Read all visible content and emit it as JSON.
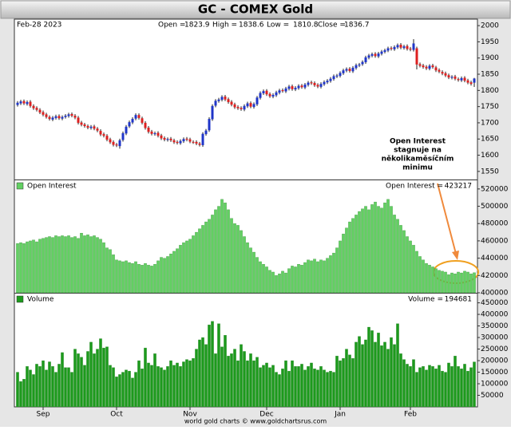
{
  "title": "GC - COMEX Gold",
  "footer": "world gold charts © www.goldchartsrus.com",
  "chart_data": [
    {
      "type": "candlestick",
      "date": "Feb-28  2023",
      "ohlc_labels": [
        "Open =",
        "High =",
        "Low =",
        "Close ="
      ],
      "annotation": [
        "Open Interest",
        "stagnuje na",
        "několikaměsíčním",
        "minimu"
      ],
      "up_color": "#1f35c8",
      "down_color": "#dd2020",
      "ylim": [
        1525,
        2020
      ],
      "yticks": [
        1550,
        1600,
        1650,
        1700,
        1750,
        1800,
        1850,
        1900,
        1950,
        2000
      ],
      "open": [
        1755,
        1760,
        1767,
        1758,
        1765,
        1752,
        1746,
        1740,
        1733,
        1726,
        1718,
        1710,
        1715,
        1721,
        1713,
        1718,
        1721,
        1727,
        1722,
        1716,
        1701,
        1695,
        1690,
        1684,
        1689,
        1682,
        1675,
        1665,
        1660,
        1649,
        1641,
        1633,
        1628,
        1647,
        1667,
        1689,
        1701,
        1713,
        1724,
        1714,
        1700,
        1685,
        1673,
        1665,
        1669,
        1661,
        1653,
        1647,
        1651,
        1646,
        1641,
        1637,
        1643,
        1651,
        1649,
        1641,
        1641,
        1636,
        1631,
        1665,
        1677,
        1711,
        1753,
        1767,
        1771,
        1781,
        1773,
        1765,
        1757,
        1749,
        1746,
        1741,
        1751,
        1761,
        1749,
        1757,
        1777,
        1791,
        1799,
        1789,
        1781,
        1785,
        1793,
        1801,
        1797,
        1805,
        1813,
        1803,
        1807,
        1815,
        1809,
        1817,
        1825,
        1823,
        1817,
        1811,
        1819,
        1825,
        1829,
        1835,
        1843,
        1845,
        1853,
        1861,
        1867,
        1859,
        1869,
        1877,
        1881,
        1887,
        1901,
        1907,
        1913,
        1905,
        1913,
        1919,
        1923,
        1931,
        1927,
        1933,
        1941,
        1931,
        1937,
        1929,
        1925,
        1930,
        1881,
        1877,
        1873,
        1867,
        1877,
        1871,
        1863,
        1857,
        1853,
        1847,
        1839,
        1843,
        1835,
        1831,
        1839,
        1831,
        1825,
        1823.9
      ],
      "high": [
        1767,
        1771,
        1772,
        1769,
        1770,
        1757,
        1751,
        1745,
        1738,
        1731,
        1723,
        1721,
        1725,
        1726,
        1723,
        1727,
        1731,
        1732,
        1727,
        1721,
        1706,
        1700,
        1695,
        1693,
        1694,
        1687,
        1680,
        1670,
        1665,
        1654,
        1646,
        1638,
        1651,
        1673,
        1693,
        1707,
        1717,
        1729,
        1729,
        1719,
        1705,
        1690,
        1678,
        1673,
        1674,
        1666,
        1658,
        1655,
        1656,
        1651,
        1646,
        1649,
        1655,
        1656,
        1654,
        1646,
        1646,
        1641,
        1671,
        1681,
        1717,
        1757,
        1773,
        1777,
        1785,
        1786,
        1778,
        1770,
        1762,
        1754,
        1751,
        1757,
        1765,
        1766,
        1763,
        1783,
        1797,
        1803,
        1804,
        1794,
        1791,
        1799,
        1805,
        1806,
        1811,
        1817,
        1818,
        1813,
        1819,
        1820,
        1823,
        1829,
        1830,
        1828,
        1822,
        1825,
        1831,
        1835,
        1841,
        1849,
        1851,
        1859,
        1867,
        1871,
        1872,
        1875,
        1883,
        1885,
        1893,
        1907,
        1913,
        1917,
        1918,
        1919,
        1925,
        1929,
        1935,
        1936,
        1939,
        1945,
        1946,
        1941,
        1942,
        1934,
        1958,
        1935,
        1886,
        1882,
        1878,
        1881,
        1882,
        1876,
        1868,
        1862,
        1858,
        1852,
        1847,
        1848,
        1840,
        1843,
        1844,
        1836,
        1830,
        1838.6
      ],
      "low": [
        1750,
        1755,
        1755,
        1753,
        1747,
        1740,
        1735,
        1727,
        1720,
        1713,
        1707,
        1705,
        1710,
        1709,
        1708,
        1713,
        1716,
        1717,
        1711,
        1695,
        1689,
        1685,
        1680,
        1679,
        1677,
        1671,
        1659,
        1655,
        1643,
        1635,
        1627,
        1625,
        1620,
        1642,
        1662,
        1684,
        1696,
        1708,
        1710,
        1695,
        1679,
        1667,
        1661,
        1660,
        1655,
        1647,
        1643,
        1642,
        1641,
        1635,
        1633,
        1632,
        1638,
        1643,
        1637,
        1635,
        1631,
        1627,
        1626,
        1660,
        1672,
        1706,
        1748,
        1762,
        1766,
        1767,
        1759,
        1751,
        1743,
        1740,
        1737,
        1736,
        1746,
        1745,
        1744,
        1752,
        1772,
        1786,
        1783,
        1777,
        1776,
        1780,
        1788,
        1793,
        1792,
        1800,
        1799,
        1798,
        1802,
        1805,
        1804,
        1812,
        1817,
        1811,
        1807,
        1806,
        1814,
        1820,
        1824,
        1830,
        1838,
        1840,
        1848,
        1856,
        1855,
        1854,
        1864,
        1872,
        1876,
        1882,
        1896,
        1902,
        1901,
        1900,
        1908,
        1914,
        1918,
        1923,
        1922,
        1928,
        1927,
        1926,
        1923,
        1921,
        1920,
        1865,
        1871,
        1867,
        1863,
        1862,
        1867,
        1857,
        1853,
        1847,
        1841,
        1835,
        1834,
        1831,
        1827,
        1826,
        1825,
        1819,
        1815,
        1810.8
      ],
      "close": [
        1762,
        1766,
        1760,
        1764,
        1752,
        1745,
        1740,
        1732,
        1725,
        1718,
        1712,
        1716,
        1720,
        1714,
        1718,
        1722,
        1726,
        1722,
        1716,
        1700,
        1694,
        1690,
        1685,
        1688,
        1682,
        1676,
        1664,
        1660,
        1648,
        1640,
        1632,
        1630,
        1646,
        1668,
        1688,
        1702,
        1712,
        1724,
        1715,
        1700,
        1684,
        1672,
        1666,
        1668,
        1660,
        1652,
        1648,
        1650,
        1646,
        1640,
        1638,
        1644,
        1650,
        1648,
        1642,
        1640,
        1636,
        1632,
        1666,
        1676,
        1712,
        1752,
        1768,
        1772,
        1780,
        1772,
        1764,
        1756,
        1748,
        1745,
        1742,
        1752,
        1760,
        1750,
        1758,
        1778,
        1792,
        1798,
        1788,
        1782,
        1786,
        1794,
        1800,
        1798,
        1806,
        1812,
        1804,
        1808,
        1814,
        1810,
        1818,
        1824,
        1822,
        1816,
        1812,
        1820,
        1826,
        1830,
        1836,
        1844,
        1846,
        1854,
        1862,
        1866,
        1860,
        1870,
        1878,
        1880,
        1888,
        1902,
        1908,
        1912,
        1906,
        1914,
        1920,
        1924,
        1930,
        1928,
        1934,
        1940,
        1932,
        1936,
        1928,
        1926,
        1945,
        1880,
        1876,
        1872,
        1868,
        1876,
        1872,
        1862,
        1858,
        1852,
        1846,
        1840,
        1842,
        1836,
        1832,
        1838,
        1830,
        1824,
        1820,
        1836.7
      ]
    },
    {
      "type": "bar",
      "name": "Open Interest",
      "readout_label": "Open Interest =",
      "color": "#62d062",
      "ylim": [
        400000,
        530000
      ],
      "yticks": [
        400000,
        420000,
        440000,
        460000,
        480000,
        500000,
        520000
      ],
      "values": [
        457000,
        458000,
        457000,
        459000,
        460000,
        461000,
        459000,
        462000,
        463000,
        464000,
        465000,
        464000,
        466000,
        465000,
        466000,
        465000,
        466000,
        464000,
        465000,
        463000,
        469000,
        466000,
        467000,
        465000,
        466000,
        464000,
        462000,
        458000,
        452000,
        450000,
        444000,
        438000,
        437000,
        436000,
        437000,
        435000,
        434000,
        436000,
        433000,
        432000,
        434000,
        432000,
        431000,
        433000,
        437000,
        441000,
        440000,
        442000,
        445000,
        448000,
        451000,
        455000,
        458000,
        460000,
        462000,
        466000,
        470000,
        474000,
        478000,
        482000,
        485000,
        490000,
        496000,
        500000,
        508000,
        504000,
        496000,
        486000,
        480000,
        478000,
        472000,
        465000,
        458000,
        452000,
        447000,
        441000,
        436000,
        433000,
        430000,
        426000,
        424000,
        420000,
        422000,
        425000,
        423000,
        428000,
        431000,
        430000,
        433000,
        432000,
        435000,
        438000,
        437000,
        439000,
        436000,
        438000,
        437000,
        440000,
        443000,
        446000,
        452000,
        460000,
        468000,
        475000,
        482000,
        486000,
        490000,
        494000,
        497000,
        500000,
        496000,
        502000,
        505000,
        500000,
        498000,
        504000,
        508000,
        500000,
        490000,
        485000,
        478000,
        472000,
        465000,
        460000,
        455000,
        448000,
        442000,
        438000,
        434000,
        432000,
        430000,
        428000,
        426000,
        425000,
        424000,
        421000,
        423000,
        422000,
        424000,
        423000,
        425000,
        424000,
        422000,
        423217
      ]
    },
    {
      "type": "bar",
      "name": "Volume",
      "readout_label": "Volume =",
      "color": "#1c9a1c",
      "ylim": [
        0,
        490000
      ],
      "yticks": [
        50000,
        100000,
        150000,
        200000,
        250000,
        300000,
        350000,
        400000,
        450000
      ],
      "categories": [
        null,
        null,
        null,
        null,
        null,
        null,
        null,
        null,
        "Sep",
        null,
        null,
        null,
        null,
        null,
        null,
        null,
        null,
        null,
        null,
        null,
        null,
        null,
        null,
        null,
        null,
        null,
        null,
        null,
        null,
        null,
        null,
        "Oct",
        null,
        null,
        null,
        null,
        null,
        null,
        null,
        null,
        null,
        null,
        null,
        null,
        null,
        null,
        null,
        null,
        null,
        null,
        null,
        null,
        null,
        null,
        "Nov",
        null,
        null,
        null,
        null,
        null,
        null,
        null,
        null,
        null,
        null,
        null,
        null,
        null,
        null,
        null,
        null,
        null,
        null,
        null,
        null,
        null,
        null,
        null,
        "Dec",
        null,
        null,
        null,
        null,
        null,
        null,
        null,
        null,
        null,
        null,
        null,
        null,
        null,
        null,
        null,
        null,
        null,
        null,
        null,
        null,
        null,
        null,
        "Jan",
        null,
        null,
        null,
        null,
        null,
        null,
        null,
        null,
        null,
        null,
        null,
        null,
        null,
        null,
        null,
        null,
        null,
        null,
        null,
        null,
        null,
        "Feb",
        null,
        null,
        null,
        null,
        null,
        null,
        null,
        null,
        null,
        null,
        null,
        null,
        null,
        null,
        null,
        null,
        null,
        null,
        null,
        null
      ],
      "values": [
        150000,
        110000,
        120000,
        175000,
        160000,
        140000,
        185000,
        175000,
        200000,
        160000,
        195000,
        175000,
        150000,
        185000,
        235000,
        170000,
        170000,
        150000,
        250000,
        230000,
        215000,
        180000,
        240000,
        280000,
        230000,
        250000,
        295000,
        255000,
        260000,
        180000,
        170000,
        130000,
        140000,
        150000,
        160000,
        155000,
        125000,
        150000,
        200000,
        165000,
        255000,
        190000,
        180000,
        230000,
        175000,
        170000,
        160000,
        175000,
        200000,
        180000,
        190000,
        175000,
        195000,
        205000,
        200000,
        210000,
        250000,
        290000,
        300000,
        270000,
        355000,
        370000,
        230000,
        360000,
        260000,
        310000,
        220000,
        230000,
        250000,
        200000,
        270000,
        240000,
        200000,
        230000,
        200000,
        215000,
        170000,
        180000,
        190000,
        170000,
        180000,
        150000,
        140000,
        165000,
        200000,
        155000,
        200000,
        175000,
        175000,
        185000,
        160000,
        175000,
        190000,
        165000,
        160000,
        175000,
        160000,
        150000,
        155000,
        150000,
        220000,
        200000,
        210000,
        250000,
        225000,
        210000,
        280000,
        305000,
        270000,
        290000,
        345000,
        330000,
        280000,
        320000,
        265000,
        280000,
        250000,
        300000,
        270000,
        360000,
        230000,
        205000,
        185000,
        175000,
        205000,
        150000,
        170000,
        175000,
        160000,
        180000,
        175000,
        165000,
        180000,
        155000,
        150000,
        190000,
        175000,
        220000,
        175000,
        165000,
        185000,
        155000,
        170000,
        194681
      ]
    }
  ]
}
